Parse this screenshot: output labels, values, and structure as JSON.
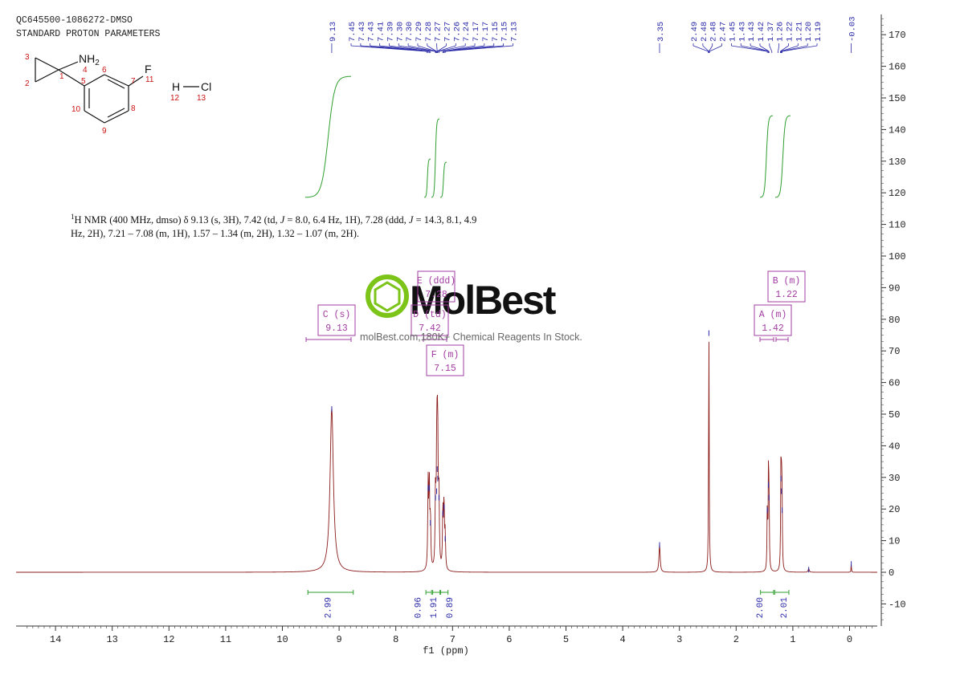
{
  "header": {
    "sample_id": "QC645500-1086272-DMSO",
    "parameters": "STANDARD PROTON PARAMETERS"
  },
  "molecule": {
    "nh2_label": "NH",
    "nh2_sub": "2",
    "f_label": "F",
    "h_label": "H",
    "cl_label": "Cl",
    "atom_numbers": [
      "1",
      "2",
      "3",
      "4",
      "5",
      "6",
      "7",
      "8",
      "9",
      "10",
      "11",
      "12",
      "13"
    ]
  },
  "nmr_text": {
    "sup": "1",
    "line1_a": "H NMR (400 MHz, dmso) δ 9.13 (s, 3H), 7.42 (td, ",
    "j1": "J",
    "line1_b": " = 8.0, 6.4 Hz, 1H), 7.28 (ddd, ",
    "j2": "J",
    "line1_c": " = 14.3, 8.1, 4.9",
    "line2": "Hz, 2H), 7.21 – 7.08 (m, 1H), 1.57 – 1.34 (m, 2H), 1.32 – 1.07 (m, 2H)."
  },
  "watermark": {
    "brand": "MolBest",
    "tagline": "molBest.com,180K+ Chemical Reagents In Stock."
  },
  "colors": {
    "spectrum": "#8b1a1a",
    "integral": "#2e9e2e",
    "label": "#2a2aa8",
    "multiplet_box": "#a23ca2",
    "axis": "#333333"
  },
  "chart_data": {
    "type": "line",
    "xlabel": "f1 (ppm)",
    "ylabel": "",
    "xlim": [
      14.7,
      -0.5
    ],
    "ylim": [
      -17,
      175
    ],
    "x_ticks": [
      "14",
      "13",
      "12",
      "11",
      "10",
      "9",
      "8",
      "7",
      "6",
      "5",
      "4",
      "3",
      "2",
      "1",
      "0"
    ],
    "x_tick_values": [
      14,
      13,
      12,
      11,
      10,
      9,
      8,
      7,
      6,
      5,
      4,
      3,
      2,
      1,
      0
    ],
    "y_ticks": [
      "170",
      "160",
      "150",
      "140",
      "130",
      "120",
      "110",
      "100",
      "90",
      "80",
      "70",
      "60",
      "50",
      "40",
      "30",
      "20",
      "10",
      "0",
      "-10"
    ],
    "y_tick_values": [
      170,
      160,
      150,
      140,
      130,
      120,
      110,
      100,
      90,
      80,
      70,
      60,
      50,
      40,
      30,
      20,
      10,
      0,
      -10
    ],
    "peaks": [
      {
        "ppm": 9.13,
        "height": 52,
        "width": 0.035
      },
      {
        "ppm": 7.43,
        "height": 27,
        "width": 0.008
      },
      {
        "ppm": 7.41,
        "height": 27,
        "width": 0.008
      },
      {
        "ppm": 7.39,
        "height": 16,
        "width": 0.008
      },
      {
        "ppm": 7.3,
        "height": 24,
        "width": 0.008
      },
      {
        "ppm": 7.28,
        "height": 26,
        "width": 0.008
      },
      {
        "ppm": 7.27,
        "height": 33,
        "width": 0.008
      },
      {
        "ppm": 7.26,
        "height": 30,
        "width": 0.008
      },
      {
        "ppm": 7.24,
        "height": 24,
        "width": 0.008
      },
      {
        "ppm": 7.17,
        "height": 19,
        "width": 0.008
      },
      {
        "ppm": 7.15,
        "height": 21,
        "width": 0.008
      },
      {
        "ppm": 7.13,
        "height": 11,
        "width": 0.008
      },
      {
        "ppm": 3.35,
        "height": 9,
        "width": 0.012
      },
      {
        "ppm": 2.48,
        "height": 76,
        "width": 0.006
      },
      {
        "ppm": 1.45,
        "height": 20,
        "width": 0.006
      },
      {
        "ppm": 1.43,
        "height": 28,
        "width": 0.006
      },
      {
        "ppm": 1.42,
        "height": 24,
        "width": 0.006
      },
      {
        "ppm": 1.21,
        "height": 30,
        "width": 0.006
      },
      {
        "ppm": 1.2,
        "height": 26,
        "width": 0.006
      },
      {
        "ppm": 1.19,
        "height": 20,
        "width": 0.006
      },
      {
        "ppm": 0.72,
        "height": 1.2,
        "width": 0.01
      },
      {
        "ppm": -0.03,
        "height": 3,
        "width": 0.004
      }
    ],
    "peak_labels_group1": [
      "9.13"
    ],
    "peak_labels_group2": [
      "7.45",
      "7.43",
      "7.43",
      "7.41",
      "7.39",
      "7.30",
      "7.30",
      "7.29",
      "7.28",
      "7.27",
      "7.27",
      "7.26",
      "7.24",
      "7.17",
      "7.17",
      "7.15",
      "7.15",
      "7.13"
    ],
    "peak_labels_group3": [
      "3.35"
    ],
    "peak_labels_group4": [
      "2.49",
      "2.48",
      "2.48",
      "2.47",
      "1.45",
      "1.43",
      "1.43",
      "1.42",
      "1.37",
      "1.26",
      "1.22",
      "1.21",
      "1.20",
      "1.19"
    ],
    "peak_labels_group5": [
      "-0.03"
    ],
    "multiplets": [
      {
        "label": "C (s)",
        "value": "9.13",
        "range": [
          9.55,
          8.75
        ]
      },
      {
        "label": "E (ddd)",
        "value": "7.28",
        "range": [
          7.35,
          7.22
        ]
      },
      {
        "label": "D (td)",
        "value": "7.42",
        "range": [
          7.47,
          7.37
        ]
      },
      {
        "label": "F (m)",
        "value": "7.15",
        "range": [
          7.21,
          7.08
        ]
      },
      {
        "label": "B (m)",
        "value": "1.22",
        "range": [
          1.32,
          1.07
        ]
      },
      {
        "label": "A (m)",
        "value": "1.42",
        "range": [
          1.57,
          1.34
        ]
      }
    ],
    "integrals": [
      {
        "value": "2.99",
        "from": 9.55,
        "to": 8.75
      },
      {
        "value": "0.96",
        "from": 7.47,
        "to": 7.37
      },
      {
        "value": "1.91",
        "from": 7.35,
        "to": 7.22
      },
      {
        "value": "0.89",
        "from": 7.21,
        "to": 7.08
      },
      {
        "value": "2.00",
        "from": 1.57,
        "to": 1.34
      },
      {
        "value": "2.01",
        "from": 1.32,
        "to": 1.07
      }
    ]
  }
}
